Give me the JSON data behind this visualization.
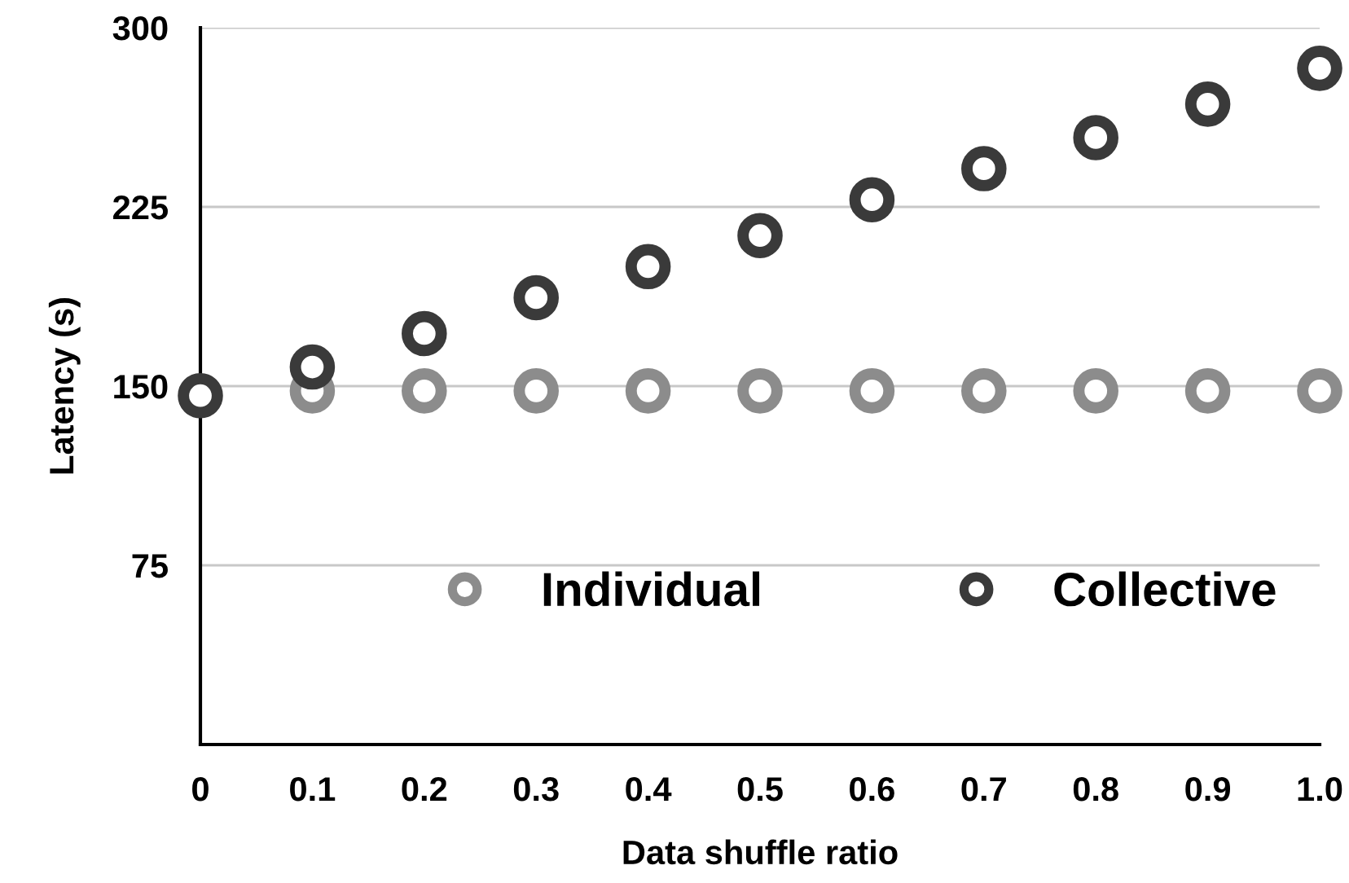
{
  "chart_data": {
    "type": "scatter",
    "xlabel": "Data shuffle ratio",
    "ylabel": "Latency (s)",
    "x": [
      0,
      0.1,
      0.2,
      0.3,
      0.4,
      0.5,
      0.6,
      0.7,
      0.8,
      0.9,
      1.0
    ],
    "series": [
      {
        "name": "Individual",
        "color": "#8c8c8c",
        "values": [
          null,
          148,
          148,
          148,
          148,
          148,
          148,
          148,
          148,
          148,
          148
        ]
      },
      {
        "name": "Collective",
        "color": "#3a3a3a",
        "values": [
          146,
          158,
          172,
          187,
          200,
          213,
          228,
          241,
          254,
          268,
          283
        ]
      }
    ],
    "xlim": [
      0,
      1.0
    ],
    "xticks": [
      0,
      0.1,
      0.2,
      0.3,
      0.4,
      0.5,
      0.6,
      0.7,
      0.8,
      0.9,
      {
        "value": 1.0,
        "label": "1.0"
      }
    ],
    "ylim": [
      0,
      300
    ],
    "yticks": [
      {
        "value": 0,
        "label": null
      },
      75,
      150,
      225,
      300
    ],
    "grid": "y",
    "legend": "bottom right",
    "marker": "circle"
  }
}
